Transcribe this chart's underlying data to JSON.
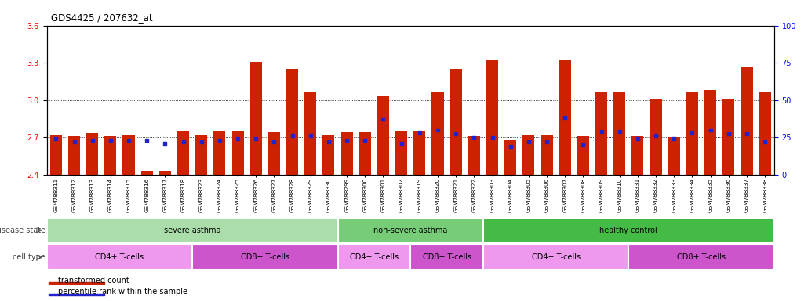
{
  "title": "GDS4425 / 207632_at",
  "samples": [
    "GSM788311",
    "GSM788312",
    "GSM788313",
    "GSM788314",
    "GSM788315",
    "GSM788316",
    "GSM788317",
    "GSM788318",
    "GSM788323",
    "GSM788324",
    "GSM788325",
    "GSM788326",
    "GSM788327",
    "GSM788328",
    "GSM788329",
    "GSM788330",
    "GSM788299",
    "GSM788300",
    "GSM788301",
    "GSM788302",
    "GSM788319",
    "GSM788320",
    "GSM788321",
    "GSM788322",
    "GSM788303",
    "GSM788304",
    "GSM788305",
    "GSM788306",
    "GSM788307",
    "GSM788308",
    "GSM788309",
    "GSM788310",
    "GSM788331",
    "GSM788332",
    "GSM788333",
    "GSM788334",
    "GSM788335",
    "GSM788336",
    "GSM788337",
    "GSM788338"
  ],
  "bar_values": [
    2.72,
    2.71,
    2.73,
    2.71,
    2.72,
    2.43,
    2.43,
    2.75,
    2.72,
    2.75,
    2.75,
    3.31,
    2.74,
    3.25,
    3.07,
    2.72,
    2.74,
    2.74,
    3.03,
    2.75,
    2.75,
    3.07,
    3.25,
    2.71,
    3.32,
    2.68,
    2.72,
    2.72,
    3.32,
    2.71,
    3.07,
    3.07,
    2.71,
    3.01,
    2.7,
    3.07,
    3.08,
    3.01,
    3.26,
    3.07
  ],
  "percentile_values": [
    24,
    22,
    23,
    23,
    23,
    23,
    21,
    22,
    22,
    23,
    24,
    24,
    22,
    26,
    26,
    22,
    23,
    23,
    37,
    21,
    28,
    30,
    27,
    25,
    25,
    19,
    22,
    22,
    38,
    20,
    29,
    29,
    24,
    26,
    24,
    28,
    30,
    27,
    27,
    22
  ],
  "ylim_left": [
    2.4,
    3.6
  ],
  "ylim_right": [
    0,
    100
  ],
  "yticks_left": [
    2.4,
    2.7,
    3.0,
    3.3,
    3.6
  ],
  "yticks_right": [
    0,
    25,
    50,
    75,
    100
  ],
  "bar_color": "#CC2200",
  "dot_color": "#2222CC",
  "disease_state_groups": [
    {
      "label": "severe asthma",
      "start": 0,
      "end": 15,
      "color": "#AADDAA"
    },
    {
      "label": "non-severe asthma",
      "start": 16,
      "end": 23,
      "color": "#77CC77"
    },
    {
      "label": "healthy control",
      "start": 24,
      "end": 39,
      "color": "#44BB44"
    }
  ],
  "cell_type_groups": [
    {
      "label": "CD4+ T-cells",
      "start": 0,
      "end": 7,
      "color": "#EE99EE"
    },
    {
      "label": "CD8+ T-cells",
      "start": 8,
      "end": 15,
      "color": "#CC55CC"
    },
    {
      "label": "CD4+ T-cells",
      "start": 16,
      "end": 19,
      "color": "#EE99EE"
    },
    {
      "label": "CD8+ T-cells",
      "start": 20,
      "end": 23,
      "color": "#CC55CC"
    },
    {
      "label": "CD4+ T-cells",
      "start": 24,
      "end": 31,
      "color": "#EE99EE"
    },
    {
      "label": "CD8+ T-cells",
      "start": 32,
      "end": 39,
      "color": "#CC55CC"
    }
  ],
  "legend_items": [
    {
      "label": "transformed count",
      "color": "#CC2200"
    },
    {
      "label": "percentile rank within the sample",
      "color": "#2222CC"
    }
  ]
}
